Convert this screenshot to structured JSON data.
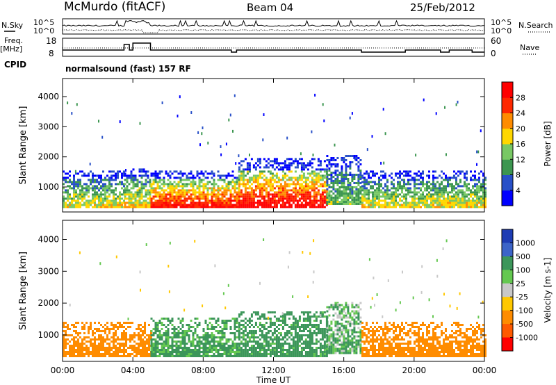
{
  "header": {
    "station": "McMurdo (fitACF)",
    "beam": "Beam 04",
    "date": "25/Feb/2012"
  },
  "panel_labels": {
    "nsky": "N.Sky",
    "nsearch": "N.Search",
    "freq": "Freq.",
    "freq_unit": "[MHz]",
    "nave": "Nave",
    "cpid": "CPID",
    "mode": "normalsound (fast) 157 RF",
    "nsky_ticks": [
      "10^5",
      "10^0"
    ],
    "nsearch_ticks": [
      "10^5",
      "10^0"
    ],
    "freq_ticks": [
      "18",
      "8"
    ],
    "nave_ticks": [
      "60",
      "0"
    ]
  },
  "chart_data": [
    {
      "type": "heatmap",
      "name": "power",
      "xlabel": "Time UT",
      "ylabel": "Slant Range [km]",
      "x_ticks": [
        "00:00",
        "04:00",
        "08:00",
        "12:00",
        "16:00",
        "20:00",
        "00:00"
      ],
      "y_ticks": [
        1000,
        2000,
        3000,
        4000
      ],
      "colorbar_label": "Power [dB]",
      "colorbar_ticks": [
        "4",
        "8",
        "12",
        "16",
        "20",
        "24",
        "28"
      ],
      "colorbar_colors": [
        "#0000ff",
        "#2850c8",
        "#3c9650",
        "#78c864",
        "#ffd700",
        "#ff8c00",
        "#ff2800",
        "#ff0000"
      ],
      "bands": [
        {
          "t0": 0.0,
          "t1": 3.5,
          "r0": 300,
          "r1": 1500,
          "peak": 18
        },
        {
          "t0": 3.5,
          "t1": 5.0,
          "r0": 300,
          "r1": 1600,
          "peak": 20
        },
        {
          "t0": 5.0,
          "t1": 10.0,
          "r0": 300,
          "r1": 1500,
          "peak": 30
        },
        {
          "t0": 10.0,
          "t1": 15.0,
          "r0": 300,
          "r1": 1900,
          "peak": 32
        },
        {
          "t0": 15.0,
          "t1": 17.0,
          "r0": 400,
          "r1": 2000,
          "peak": 14
        },
        {
          "t0": 17.0,
          "t1": 24.0,
          "r0": 300,
          "r1": 1500,
          "peak": 18
        }
      ]
    },
    {
      "type": "heatmap",
      "name": "velocity",
      "xlabel": "Time UT",
      "ylabel": "Slant Range [km]",
      "x_ticks": [
        "00:00",
        "04:00",
        "08:00",
        "12:00",
        "16:00",
        "20:00",
        "00:00"
      ],
      "y_ticks": [
        1000,
        2000,
        3000,
        4000
      ],
      "colorbar_label": "Velocity [m s-1]",
      "colorbar_ticks": [
        "1000",
        "500",
        "100",
        "25",
        "-25",
        "-100",
        "-500",
        "-1000"
      ],
      "colorbar_colors": [
        "#1e3cb4",
        "#3c64c8",
        "#3c965a",
        "#64c850",
        "#c8c8c8",
        "#ffc800",
        "#ff8c00",
        "#ff5a00",
        "#ff0000"
      ],
      "bands": [
        {
          "t0": 0.0,
          "t1": 5.0,
          "r0": 300,
          "r1": 1400,
          "vel": -300
        },
        {
          "t0": 5.0,
          "t1": 10.0,
          "r0": 300,
          "r1": 1500,
          "vel": 150
        },
        {
          "t0": 10.0,
          "t1": 15.0,
          "r0": 300,
          "r1": 1700,
          "vel": 200
        },
        {
          "t0": 15.0,
          "t1": 17.0,
          "r0": 400,
          "r1": 2000,
          "vel": 100
        },
        {
          "t0": 17.0,
          "t1": 24.0,
          "r0": 300,
          "r1": 1400,
          "vel": -300
        }
      ]
    }
  ]
}
